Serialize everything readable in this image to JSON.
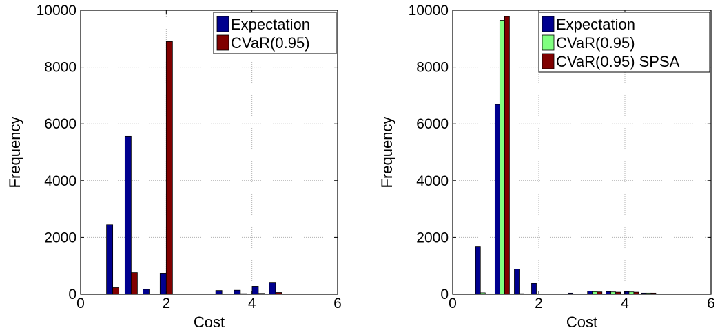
{
  "colors": {
    "expectation": "#00008f",
    "cvar": "#800000",
    "cvar_light": "#80ff80",
    "cvar_spsa": "#800000",
    "grid": "#b0b0b0"
  },
  "chart_data": [
    {
      "type": "bar",
      "xlabel": "Cost",
      "ylabel": "Frequency",
      "xlim": [
        0,
        6
      ],
      "ylim": [
        0,
        10000
      ],
      "xticks": [
        "0",
        "2",
        "4",
        "6"
      ],
      "yticks": [
        "0",
        "2000",
        "4000",
        "6000",
        "8000",
        "10000"
      ],
      "grid": true,
      "legend_position": "top-right",
      "bin_centers": [
        0.75,
        1.18,
        1.6,
        2.0,
        2.45,
        2.9,
        3.3,
        3.73,
        4.15,
        4.55
      ],
      "series": [
        {
          "name": "Expectation",
          "color_key": "expectation",
          "values": [
            2450,
            5560,
            170,
            740,
            0,
            0,
            130,
            140,
            280,
            420
          ]
        },
        {
          "name": "CVaR(0.95)",
          "color_key": "cvar",
          "values": [
            230,
            760,
            0,
            8900,
            0,
            0,
            0,
            20,
            30,
            60
          ]
        }
      ]
    },
    {
      "type": "bar",
      "xlabel": "Cost",
      "ylabel": "Frequency",
      "xlim": [
        0,
        6
      ],
      "ylim": [
        0,
        10000
      ],
      "xticks": [
        "0",
        "2",
        "4",
        "6"
      ],
      "yticks": [
        "0",
        "2000",
        "4000",
        "6000",
        "8000",
        "10000"
      ],
      "grid": true,
      "legend_position": "top-right",
      "bin_centers": [
        0.7,
        1.15,
        1.6,
        2.0,
        2.4,
        2.85,
        3.3,
        3.73,
        4.15,
        4.55
      ],
      "series": [
        {
          "name": "Expectation",
          "color_key": "expectation",
          "values": [
            1680,
            6680,
            880,
            380,
            0,
            40,
            110,
            90,
            90,
            40
          ]
        },
        {
          "name": "CVaR(0.95)",
          "color_key": "cvar_light",
          "values": [
            50,
            9650,
            20,
            0,
            0,
            0,
            90,
            80,
            80,
            40
          ]
        },
        {
          "name": "CVaR(0.95) SPSA",
          "color_key": "cvar_spsa",
          "values": [
            0,
            9780,
            0,
            0,
            0,
            0,
            80,
            70,
            70,
            40
          ]
        }
      ]
    }
  ]
}
